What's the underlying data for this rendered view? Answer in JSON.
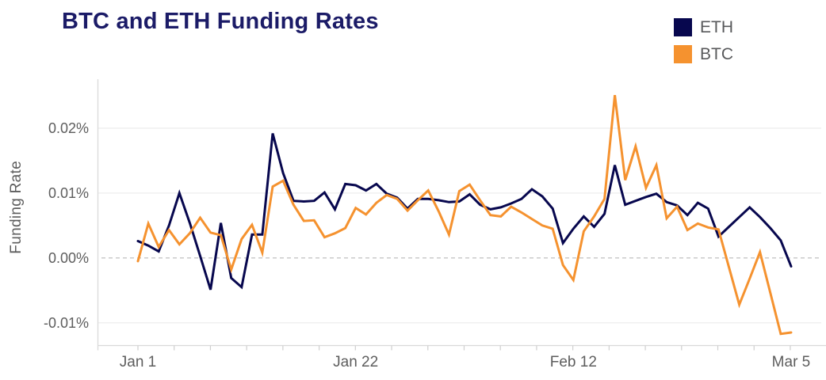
{
  "title": "BTC and ETH Funding Rates",
  "y_axis_label": "Funding Rate",
  "chart_data": {
    "type": "line",
    "title": "BTC and ETH Funding Rates",
    "ylabel": "Funding Rate",
    "xlabel": "",
    "grid": true,
    "zero_line": "dashed",
    "legend_position": "top-right",
    "x_unit": "daily, Jan 1 to Mar 5",
    "x_ticks": [
      {
        "label": "Jan 1",
        "index": 0
      },
      {
        "label": "Jan 22",
        "index": 21
      },
      {
        "label": "Feb 12",
        "index": 42
      },
      {
        "label": "Mar 5",
        "index": 63
      }
    ],
    "y_ticks": [
      {
        "label": "0.02%",
        "value": 0.02
      },
      {
        "label": "0.01%",
        "value": 0.01
      },
      {
        "label": "0.00%",
        "value": 0.0
      },
      {
        "label": "-0.01%",
        "value": -0.01
      }
    ],
    "ylim": [
      -0.0138,
      0.0277
    ],
    "series": [
      {
        "name": "ETH",
        "color": "#07074e",
        "values": [
          0.0026,
          0.0019,
          0.001,
          0.005,
          0.01,
          0.0054,
          0.0003,
          -0.0049,
          0.0054,
          -0.0031,
          -0.0045,
          0.0036,
          0.0036,
          0.0192,
          0.0131,
          0.0088,
          0.0087,
          0.0088,
          0.0101,
          0.0075,
          0.0114,
          0.0112,
          0.0104,
          0.0114,
          0.0099,
          0.0093,
          0.0076,
          0.0091,
          0.0091,
          0.0089,
          0.0086,
          0.0087,
          0.0098,
          0.0082,
          0.0075,
          0.0078,
          0.0084,
          0.0091,
          0.0106,
          0.0095,
          0.0076,
          0.0023,
          0.0045,
          0.0064,
          0.0048,
          0.0068,
          0.0143,
          0.0082,
          0.0088,
          0.0094,
          0.0099,
          0.0086,
          0.0081,
          0.0066,
          0.0085,
          0.0076,
          0.0033,
          0.0048,
          0.0063,
          0.0078,
          0.0063,
          0.0046,
          0.0027,
          -0.0013
        ]
      },
      {
        "name": "BTC",
        "color": "#f5922f",
        "values": [
          -0.0005,
          0.0053,
          0.0017,
          0.0043,
          0.0021,
          0.0038,
          0.0062,
          0.0039,
          0.0035,
          -0.0018,
          0.0029,
          0.0051,
          0.0008,
          0.011,
          0.0119,
          0.0082,
          0.0057,
          0.0058,
          0.0032,
          0.0038,
          0.0046,
          0.0077,
          0.0067,
          0.0085,
          0.0097,
          0.0091,
          0.0073,
          0.0089,
          0.0104,
          0.0072,
          0.0036,
          0.0103,
          0.0113,
          0.0089,
          0.0066,
          0.0064,
          0.0079,
          0.007,
          0.006,
          0.005,
          0.0045,
          -0.0011,
          -0.0034,
          0.0041,
          0.0064,
          0.0091,
          0.0251,
          0.012,
          0.0172,
          0.0108,
          0.0143,
          0.0061,
          0.0079,
          0.0043,
          0.0053,
          0.0047,
          0.0044,
          -0.0014,
          -0.0072,
          -0.0032,
          0.0009,
          -0.0054,
          -0.0117,
          -0.0115
        ]
      }
    ]
  }
}
